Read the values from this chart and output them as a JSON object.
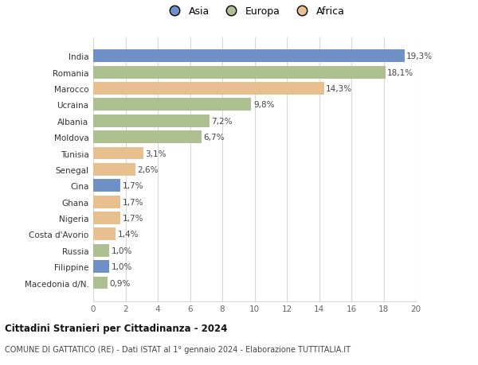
{
  "categories": [
    "Macedonia d/N.",
    "Filippine",
    "Russia",
    "Costa d'Avorio",
    "Nigeria",
    "Ghana",
    "Cina",
    "Senegal",
    "Tunisia",
    "Moldova",
    "Albania",
    "Ucraina",
    "Marocco",
    "Romania",
    "India"
  ],
  "values": [
    0.9,
    1.0,
    1.0,
    1.4,
    1.7,
    1.7,
    1.7,
    2.6,
    3.1,
    6.7,
    7.2,
    9.8,
    14.3,
    18.1,
    19.3
  ],
  "labels": [
    "0,9%",
    "1,0%",
    "1,0%",
    "1,4%",
    "1,7%",
    "1,7%",
    "1,7%",
    "2,6%",
    "3,1%",
    "6,7%",
    "7,2%",
    "9,8%",
    "14,3%",
    "18,1%",
    "19,3%"
  ],
  "continents": [
    "Europa",
    "Asia",
    "Europa",
    "Africa",
    "Africa",
    "Africa",
    "Asia",
    "Africa",
    "Africa",
    "Europa",
    "Europa",
    "Europa",
    "Africa",
    "Europa",
    "Asia"
  ],
  "colors": {
    "Asia": "#7090c8",
    "Europa": "#aec090",
    "Africa": "#e8c090"
  },
  "legend": [
    "Asia",
    "Europa",
    "Africa"
  ],
  "legend_colors": [
    "#7090c8",
    "#aec090",
    "#e8c090"
  ],
  "title": "Cittadini Stranieri per Cittadinanza - 2024",
  "subtitle": "COMUNE DI GATTATICO (RE) - Dati ISTAT al 1° gennaio 2024 - Elaborazione TUTTITALIA.IT",
  "xlim": [
    0,
    20
  ],
  "xticks": [
    0,
    2,
    4,
    6,
    8,
    10,
    12,
    14,
    16,
    18,
    20
  ],
  "background_color": "#ffffff",
  "bar_height": 0.78,
  "grid_color": "#d8d8d8"
}
